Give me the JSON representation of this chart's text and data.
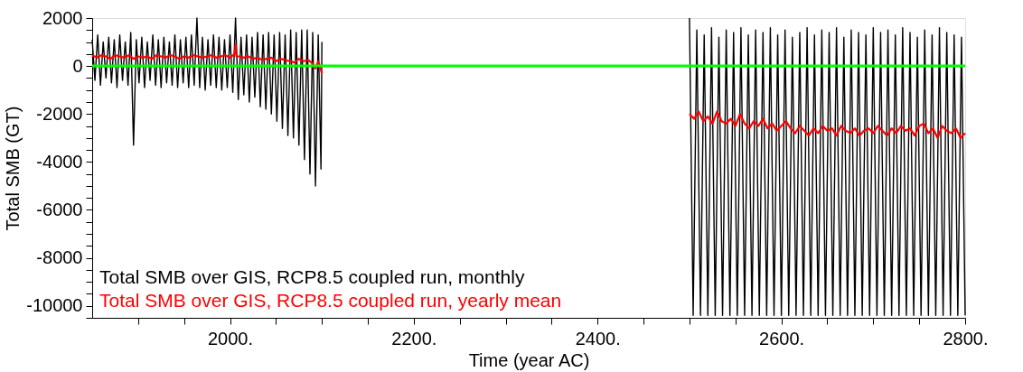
{
  "chart_data": {
    "type": "line",
    "xlabel": "Time (year AC)",
    "ylabel": "Total SMB (GT)",
    "xlim": [
      1850,
      2800
    ],
    "ylim": [
      -10500,
      2000
    ],
    "xticks": [
      {
        "value": 1900,
        "label": null
      },
      {
        "value": 1950,
        "label": null
      },
      {
        "value": 2000,
        "label": "2000."
      },
      {
        "value": 2050,
        "label": null
      },
      {
        "value": 2100,
        "label": null
      },
      {
        "value": 2150,
        "label": null
      },
      {
        "value": 2200,
        "label": "2200."
      },
      {
        "value": 2250,
        "label": null
      },
      {
        "value": 2300,
        "label": null
      },
      {
        "value": 2350,
        "label": null
      },
      {
        "value": 2400,
        "label": "2400."
      },
      {
        "value": 2450,
        "label": null
      },
      {
        "value": 2500,
        "label": null
      },
      {
        "value": 2550,
        "label": null
      },
      {
        "value": 2600,
        "label": "2600."
      },
      {
        "value": 2650,
        "label": null
      },
      {
        "value": 2700,
        "label": null
      },
      {
        "value": 2750,
        "label": null
      },
      {
        "value": 2800,
        "label": "2800."
      }
    ],
    "yticks": [
      {
        "value": -10500,
        "label": null
      },
      -10000,
      {
        "value": -9500,
        "label": null
      },
      {
        "value": -9000,
        "label": null
      },
      {
        "value": -8500,
        "label": null
      },
      -8000,
      {
        "value": -7500,
        "label": null
      },
      {
        "value": -7000,
        "label": null
      },
      {
        "value": -6500,
        "label": null
      },
      -6000,
      {
        "value": -5500,
        "label": null
      },
      {
        "value": -5000,
        "label": null
      },
      {
        "value": -4500,
        "label": null
      },
      -4000,
      {
        "value": -3500,
        "label": null
      },
      {
        "value": -3000,
        "label": null
      },
      {
        "value": -2500,
        "label": null
      },
      -2000,
      {
        "value": -1500,
        "label": null
      },
      {
        "value": -1000,
        "label": null
      },
      {
        "value": -500,
        "label": null
      },
      0,
      {
        "value": 500,
        "label": null
      },
      {
        "value": 1000,
        "label": null
      },
      {
        "value": 1500,
        "label": null
      },
      2000
    ],
    "grid": false,
    "legend": "bottom left",
    "marker": "none",
    "line_style": "solid",
    "ref_lines": [
      {
        "axis": "y",
        "value": 0,
        "color": "#00ff00"
      }
    ],
    "series": [
      {
        "name": "Total SMB over GIS, RCP8.5 coupled run, monthly",
        "color": "#000000",
        "x": [
          1850,
          1853,
          1856,
          1859,
          1862,
          1865,
          1868,
          1871,
          1874,
          1877,
          1880,
          1883,
          1886,
          1889,
          1892,
          1895,
          1898,
          1901,
          1904,
          1907,
          1910,
          1913,
          1916,
          1919,
          1922,
          1925,
          1928,
          1931,
          1934,
          1937,
          1940,
          1943,
          1946,
          1949,
          1952,
          1955,
          1958,
          1961,
          1964,
          1967,
          1970,
          1973,
          1976,
          1979,
          1982,
          1985,
          1988,
          1991,
          1994,
          1997,
          2000,
          2003,
          2006,
          2009,
          2012,
          2015,
          2018,
          2021,
          2024,
          2027,
          2030,
          2033,
          2036,
          2039,
          2042,
          2045,
          2048,
          2051,
          2054,
          2057,
          2060,
          2063,
          2066,
          2069,
          2072,
          2075,
          2078,
          2081,
          2084,
          2087,
          2090,
          2093,
          2096,
          2099,
          2100,
          2300,
          2500,
          2504,
          2508,
          2512,
          2516,
          2520,
          2524,
          2528,
          2532,
          2536,
          2540,
          2544,
          2548,
          2552,
          2556,
          2560,
          2564,
          2568,
          2572,
          2576,
          2580,
          2584,
          2588,
          2592,
          2596,
          2600,
          2604,
          2608,
          2612,
          2616,
          2620,
          2624,
          2628,
          2632,
          2636,
          2640,
          2644,
          2648,
          2652,
          2656,
          2660,
          2664,
          2668,
          2672,
          2676,
          2680,
          2684,
          2688,
          2692,
          2696,
          2700,
          2704,
          2708,
          2712,
          2716,
          2720,
          2724,
          2728,
          2732,
          2736,
          2740,
          2744,
          2748,
          2752,
          2756,
          2760,
          2764,
          2768,
          2772,
          2776,
          2780,
          2784,
          2788,
          2792,
          2796,
          2800
        ],
        "values": [
          1100,
          -600,
          1300,
          -800,
          1000,
          -500,
          1200,
          -700,
          1100,
          -900,
          1300,
          -600,
          1000,
          -800,
          1400,
          -3300,
          1100,
          -700,
          1200,
          -900,
          1000,
          -600,
          1300,
          -800,
          1100,
          -900,
          1200,
          -700,
          1000,
          -800,
          1300,
          -900,
          1100,
          -700,
          1200,
          -900,
          1300,
          -800,
          2000,
          -900,
          1200,
          -1000,
          1100,
          -800,
          1300,
          -900,
          1200,
          -1000,
          1100,
          -900,
          1300,
          -1100,
          2000,
          -1400,
          1200,
          -1200,
          1300,
          -1500,
          1200,
          -1300,
          1400,
          -1700,
          1300,
          -1800,
          1400,
          -2000,
          1300,
          -2300,
          1400,
          -2600,
          1300,
          -2900,
          1500,
          -3000,
          1400,
          -3300,
          1500,
          -3900,
          1500,
          -4500,
          1400,
          -5000,
          1300,
          -4300,
          1000,
          null,
          2000,
          -10400,
          1500,
          -10400,
          1300,
          -10400,
          1600,
          -10400,
          1200,
          -10400,
          1500,
          -10400,
          1400,
          -10400,
          1600,
          -10400,
          1300,
          -10400,
          1500,
          -10400,
          1400,
          -10400,
          1600,
          -10400,
          1300,
          -10400,
          1500,
          -10400,
          1200,
          -10400,
          1400,
          -10400,
          1600,
          -10400,
          1300,
          -10400,
          1500,
          -10400,
          1400,
          -10400,
          1600,
          -10400,
          1200,
          -10400,
          1500,
          -10400,
          1400,
          -10400,
          1300,
          -10400,
          1600,
          -10400,
          1400,
          -10400,
          1500,
          -10400,
          1300,
          -10400,
          1600,
          -10400,
          1400,
          -10400,
          1200,
          -10400,
          1500,
          -10400,
          1300,
          -10400,
          1600,
          -10400,
          1400,
          -10400,
          1300,
          -10400,
          1200,
          -10400
        ]
      },
      {
        "name": "Total SMB over GIS, RCP8.5 coupled run, yearly mean",
        "color": "#ff0000",
        "x": [
          1850,
          1855,
          1860,
          1865,
          1870,
          1875,
          1880,
          1885,
          1890,
          1895,
          1900,
          1905,
          1910,
          1915,
          1920,
          1925,
          1930,
          1935,
          1940,
          1945,
          1950,
          1955,
          1960,
          1965,
          1970,
          1975,
          1980,
          1985,
          1990,
          1995,
          2000,
          2005,
          2006,
          2007,
          2010,
          2015,
          2020,
          2025,
          2030,
          2035,
          2040,
          2045,
          2050,
          2055,
          2060,
          2065,
          2070,
          2075,
          2080,
          2085,
          2090,
          2093,
          2096,
          2100,
          2300,
          2500,
          2505,
          2510,
          2515,
          2520,
          2525,
          2530,
          2535,
          2540,
          2545,
          2550,
          2555,
          2560,
          2565,
          2570,
          2575,
          2580,
          2585,
          2590,
          2595,
          2600,
          2605,
          2610,
          2615,
          2620,
          2625,
          2630,
          2635,
          2640,
          2645,
          2650,
          2655,
          2660,
          2665,
          2670,
          2675,
          2680,
          2685,
          2690,
          2695,
          2700,
          2705,
          2710,
          2715,
          2720,
          2725,
          2730,
          2735,
          2740,
          2745,
          2750,
          2755,
          2760,
          2765,
          2770,
          2775,
          2780,
          2785,
          2790,
          2795,
          2800
        ],
        "values": [
          450,
          350,
          450,
          400,
          300,
          450,
          400,
          350,
          450,
          300,
          400,
          350,
          400,
          300,
          450,
          400,
          350,
          450,
          400,
          300,
          400,
          350,
          450,
          400,
          350,
          400,
          450,
          350,
          400,
          450,
          350,
          500,
          900,
          400,
          400,
          350,
          400,
          300,
          350,
          250,
          300,
          350,
          200,
          300,
          250,
          200,
          150,
          300,
          200,
          250,
          100,
          -100,
          200,
          -300,
          null,
          -2000,
          -2200,
          -1900,
          -2300,
          -2100,
          -2400,
          -1900,
          -2300,
          -2400,
          -2200,
          -2500,
          -2000,
          -2400,
          -2600,
          -2300,
          -2500,
          -2200,
          -2600,
          -2400,
          -2700,
          -2500,
          -2300,
          -2600,
          -2800,
          -2500,
          -2700,
          -2900,
          -2600,
          -2800,
          -2500,
          -2700,
          -2600,
          -2900,
          -2500,
          -2700,
          -2800,
          -2600,
          -2900,
          -2700,
          -2600,
          -2800,
          -2500,
          -2700,
          -2900,
          -2600,
          -2800,
          -2500,
          -2700,
          -2600,
          -2900,
          -2500,
          -2400,
          -2800,
          -2600,
          -3000,
          -2500,
          -2700,
          -2800,
          -2600,
          -3000,
          -2800
        ]
      }
    ]
  }
}
